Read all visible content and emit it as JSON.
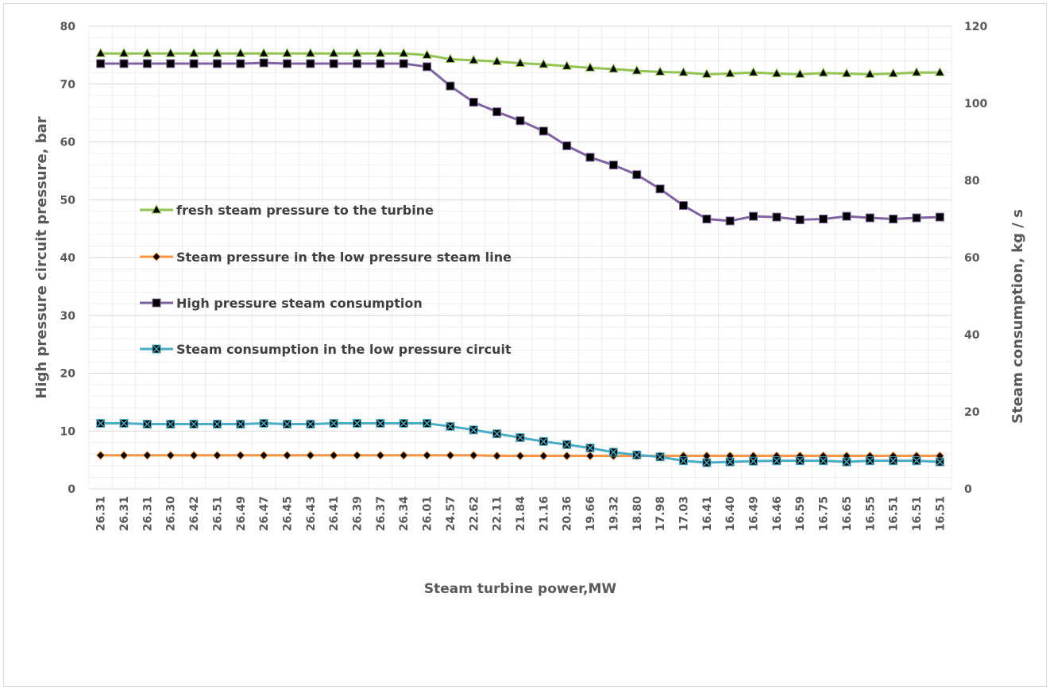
{
  "chart_data": {
    "type": "line",
    "title": "",
    "xlabel": "Steam turbine power,MW",
    "ylabel": "High pressure circuit pressure, bar",
    "y2label": "Steam consumption,  kg / s",
    "ylim": [
      0,
      80
    ],
    "y2lim": [
      0,
      120
    ],
    "yticks": [
      "0",
      "10",
      "20",
      "30",
      "40",
      "50",
      "60",
      "70",
      "80"
    ],
    "y2ticks": [
      "0",
      "20",
      "40",
      "60",
      "80",
      "100",
      "120"
    ],
    "grid": true,
    "legend_position": "center-left",
    "categories": [
      "26.31",
      "26.31",
      "26.31",
      "26.30",
      "26.42",
      "26.51",
      "26.49",
      "26.47",
      "26.45",
      "26.43",
      "26.41",
      "26.39",
      "26.37",
      "26.34",
      "26.01",
      "24.57",
      "22.62",
      "22.11",
      "21.84",
      "21.16",
      "20.36",
      "19.66",
      "19.32",
      "18.80",
      "17.98",
      "17.03",
      "16.41",
      "16.40",
      "16.49",
      "16.46",
      "16.59",
      "16.75",
      "16.65",
      "16.55",
      "16.51",
      "16.51",
      "16.51"
    ],
    "series": [
      {
        "name": "fresh steam pressure to the turbine",
        "axis": "left",
        "color": "#92c353",
        "marker": "triangle",
        "values": [
          75.3,
          75.3,
          75.3,
          75.3,
          75.3,
          75.3,
          75.3,
          75.3,
          75.3,
          75.3,
          75.3,
          75.3,
          75.3,
          75.3,
          75.0,
          74.3,
          74.1,
          73.9,
          73.6,
          73.4,
          73.1,
          72.8,
          72.6,
          72.3,
          72.1,
          72.0,
          71.7,
          71.8,
          72.0,
          71.8,
          71.7,
          71.9,
          71.8,
          71.7,
          71.8,
          72.0,
          72.0
        ]
      },
      {
        "name": "Steam pressure in the low pressure steam line",
        "axis": "left",
        "color": "#f79646",
        "marker": "diamond",
        "values": [
          5.8,
          5.8,
          5.8,
          5.8,
          5.8,
          5.8,
          5.8,
          5.8,
          5.8,
          5.8,
          5.8,
          5.8,
          5.8,
          5.8,
          5.8,
          5.8,
          5.8,
          5.7,
          5.7,
          5.7,
          5.7,
          5.7,
          5.7,
          5.7,
          5.7,
          5.7,
          5.7,
          5.7,
          5.7,
          5.7,
          5.7,
          5.7,
          5.7,
          5.7,
          5.7,
          5.7,
          5.7
        ]
      },
      {
        "name": "High pressure steam consumption",
        "axis": "right",
        "color": "#8064a2",
        "marker": "square",
        "values": [
          110.3,
          110.3,
          110.3,
          110.3,
          110.3,
          110.3,
          110.3,
          110.5,
          110.3,
          110.3,
          110.3,
          110.3,
          110.3,
          110.3,
          109.5,
          104.5,
          100.3,
          97.8,
          95.5,
          92.8,
          89.0,
          86.0,
          84.0,
          81.5,
          77.8,
          73.5,
          70.0,
          69.5,
          70.7,
          70.5,
          69.8,
          70.0,
          70.7,
          70.3,
          70.0,
          70.3,
          70.5
        ]
      },
      {
        "name": "Steam consumption in the low pressure circuit",
        "axis": "right",
        "color": "#4bacc6",
        "marker": "square-x",
        "values": [
          17.0,
          17.0,
          16.8,
          16.8,
          16.8,
          16.8,
          16.8,
          17.0,
          16.8,
          16.8,
          17.0,
          17.0,
          17.0,
          17.0,
          17.0,
          16.2,
          15.3,
          14.3,
          13.3,
          12.3,
          11.5,
          10.6,
          9.5,
          8.8,
          8.3,
          7.3,
          6.8,
          7.0,
          7.2,
          7.3,
          7.3,
          7.3,
          7.0,
          7.3,
          7.3,
          7.3,
          7.0
        ]
      }
    ]
  }
}
